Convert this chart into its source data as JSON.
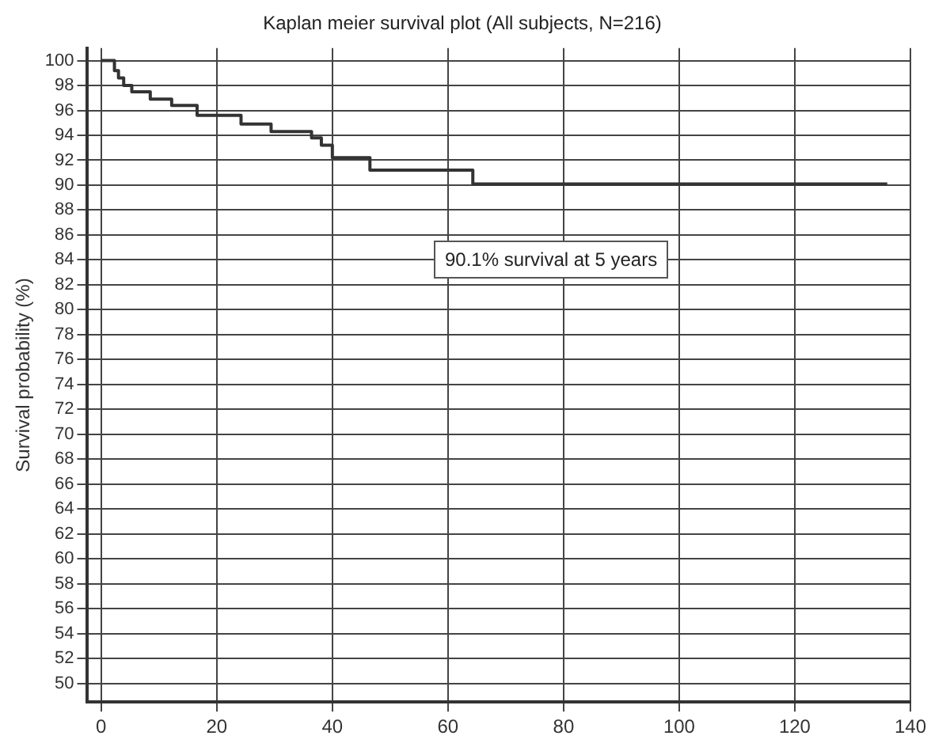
{
  "chart_data": {
    "type": "step",
    "title": "Kaplan meier survival plot (All subjects, N=216)",
    "ylabel": "Survival probability (%)",
    "x": [
      0,
      2.3,
      3,
      3.9,
      5.3,
      8.5,
      12.2,
      16.6,
      24.2,
      29.4,
      36.4,
      38.1,
      40,
      46.5,
      64.3,
      136
    ],
    "series": [
      {
        "color": "#333333",
        "values": [
          100,
          99.2,
          98.6,
          98,
          97.5,
          96.9,
          96.4,
          95.6,
          94.9,
          94.3,
          93.8,
          93.2,
          92.2,
          91.2,
          90.1,
          90.1
        ]
      }
    ],
    "xlim": [
      -2.5,
      140
    ],
    "xticks": [
      0,
      20,
      40,
      60,
      80,
      100,
      120,
      140
    ],
    "ylim": [
      48.5,
      101
    ],
    "yticks": [
      50,
      52,
      54,
      56,
      58,
      60,
      62,
      64,
      66,
      68,
      70,
      72,
      74,
      76,
      78,
      80,
      82,
      84,
      86,
      88,
      90,
      92,
      94,
      96,
      98,
      100
    ],
    "grid": true,
    "legend": false,
    "marker": "none",
    "line_style": "solid",
    "annotations": [
      "90.1% survival at 5 years"
    ]
  }
}
